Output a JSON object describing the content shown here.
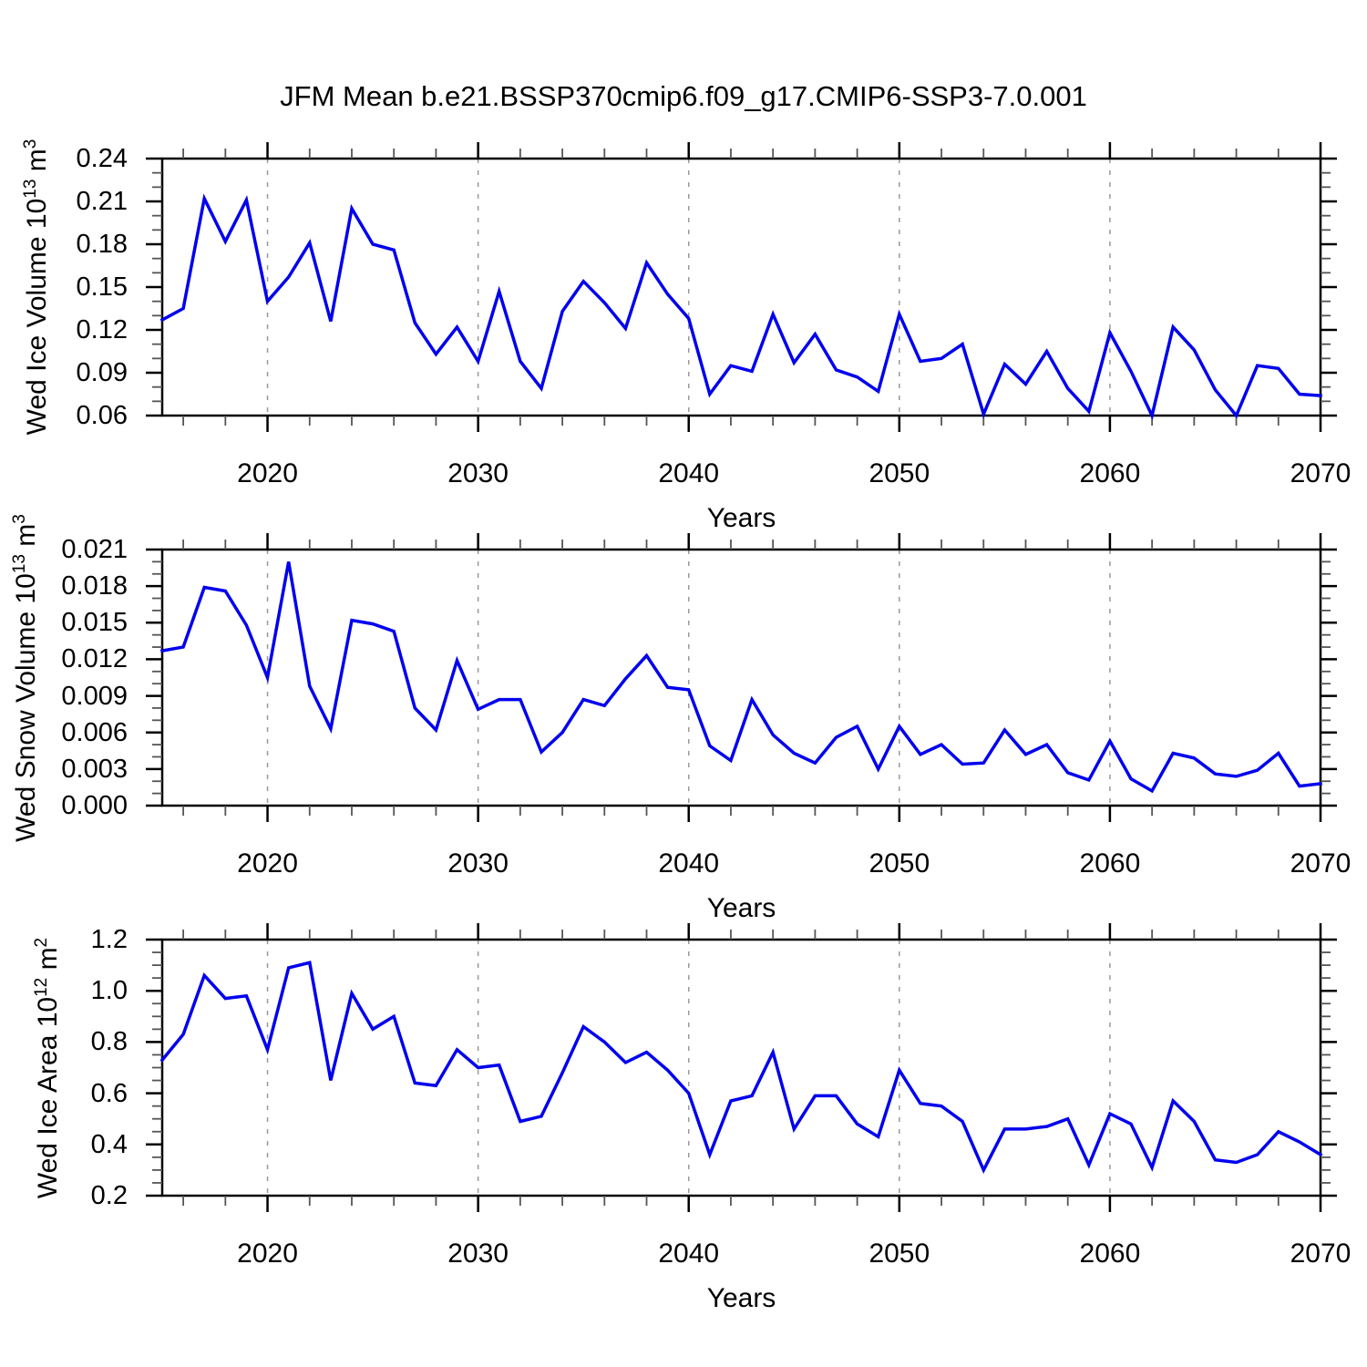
{
  "title": "JFM Mean b.e21.BSSP370cmip6.f09_g17.CMIP6-SSP3-7.0.001",
  "colors": {
    "line": "#0000EE",
    "axis": "#000000",
    "grid": "#999999",
    "minor_tick": "#555555",
    "background": "#FFFFFF"
  },
  "x_axis": {
    "label": "Years",
    "range": [
      2015,
      2070
    ],
    "tick_years": [
      2020,
      2030,
      2040,
      2050,
      2060,
      2070
    ],
    "tick_labels": [
      "2020",
      "2030",
      "2040",
      "2050",
      "2060",
      "2070"
    ],
    "minor_step_years": 2,
    "gridline_years": [
      2020,
      2030,
      2040,
      2050,
      2060
    ],
    "grid_style": "dashed"
  },
  "chart_data": [
    {
      "type": "line",
      "name": "wed-ice-volume",
      "ylabel_segments": [
        {
          "t": "Wed Ice Volume 10",
          "sup": false
        },
        {
          "t": "13",
          "sup": true
        },
        {
          "t": " m",
          "sup": false
        },
        {
          "t": "3",
          "sup": true
        }
      ],
      "xlabel": "Years",
      "ylim": [
        0.06,
        0.24
      ],
      "yticks": [
        0.24,
        0.21,
        0.18,
        0.15,
        0.12,
        0.09,
        0.06
      ],
      "ytick_labels": [
        "0.24",
        "0.21",
        "0.18",
        "0.15",
        "0.12",
        "0.09",
        "0.06"
      ],
      "yminor": 0.01,
      "x": [
        2015,
        2016,
        2017,
        2018,
        2019,
        2020,
        2021,
        2022,
        2023,
        2024,
        2025,
        2026,
        2027,
        2028,
        2029,
        2030,
        2031,
        2032,
        2033,
        2034,
        2035,
        2036,
        2037,
        2038,
        2039,
        2040,
        2041,
        2042,
        2043,
        2044,
        2045,
        2046,
        2047,
        2048,
        2049,
        2050,
        2051,
        2052,
        2053,
        2054,
        2055,
        2056,
        2057,
        2058,
        2059,
        2060,
        2061,
        2062,
        2063,
        2064,
        2065,
        2066,
        2067,
        2068,
        2069,
        2070
      ],
      "values": [
        0.127,
        0.135,
        0.212,
        0.182,
        0.211,
        0.14,
        0.157,
        0.181,
        0.126,
        0.205,
        0.18,
        0.176,
        0.125,
        0.103,
        0.122,
        0.098,
        0.147,
        0.098,
        0.079,
        0.133,
        0.154,
        0.139,
        0.121,
        0.167,
        0.145,
        0.128,
        0.075,
        0.095,
        0.091,
        0.131,
        0.097,
        0.117,
        0.092,
        0.087,
        0.077,
        0.131,
        0.098,
        0.1,
        0.11,
        0.061,
        0.096,
        0.082,
        0.105,
        0.079,
        0.063,
        0.118,
        0.091,
        0.06,
        0.122,
        0.106,
        0.078,
        0.06,
        0.095,
        0.093,
        0.075,
        0.074
      ]
    },
    {
      "type": "line",
      "name": "wed-snow-volume",
      "ylabel_segments": [
        {
          "t": "Wed Snow Volume 10",
          "sup": false
        },
        {
          "t": "13",
          "sup": true
        },
        {
          "t": " m",
          "sup": false
        },
        {
          "t": "3",
          "sup": true
        }
      ],
      "xlabel": "Years",
      "ylim": [
        0.0,
        0.021
      ],
      "yticks": [
        0.021,
        0.018,
        0.015,
        0.012,
        0.009,
        0.006,
        0.003,
        0.0
      ],
      "ytick_labels": [
        "0.021",
        "0.018",
        "0.015",
        "0.012",
        "0.009",
        "0.006",
        "0.003",
        "0.000"
      ],
      "yminor": 0.001,
      "x": [
        2015,
        2016,
        2017,
        2018,
        2019,
        2020,
        2021,
        2022,
        2023,
        2024,
        2025,
        2026,
        2027,
        2028,
        2029,
        2030,
        2031,
        2032,
        2033,
        2034,
        2035,
        2036,
        2037,
        2038,
        2039,
        2040,
        2041,
        2042,
        2043,
        2044,
        2045,
        2046,
        2047,
        2048,
        2049,
        2050,
        2051,
        2052,
        2053,
        2054,
        2055,
        2056,
        2057,
        2058,
        2059,
        2060,
        2061,
        2062,
        2063,
        2064,
        2065,
        2066,
        2067,
        2068,
        2069,
        2070
      ],
      "values": [
        0.0127,
        0.013,
        0.0179,
        0.0176,
        0.0148,
        0.0105,
        0.02,
        0.0098,
        0.0063,
        0.0152,
        0.0149,
        0.0143,
        0.008,
        0.0062,
        0.0119,
        0.0079,
        0.0087,
        0.0087,
        0.0044,
        0.006,
        0.0087,
        0.0082,
        0.0104,
        0.0123,
        0.0097,
        0.0095,
        0.0049,
        0.0037,
        0.0087,
        0.0058,
        0.0043,
        0.0035,
        0.0056,
        0.0065,
        0.003,
        0.0065,
        0.0042,
        0.005,
        0.0034,
        0.0035,
        0.0062,
        0.0042,
        0.005,
        0.0027,
        0.0021,
        0.0053,
        0.0022,
        0.0012,
        0.0043,
        0.0039,
        0.0026,
        0.0024,
        0.0029,
        0.0043,
        0.0016,
        0.0018
      ]
    },
    {
      "type": "line",
      "name": "wed-ice-area",
      "ylabel_segments": [
        {
          "t": "Wed Ice Area 10",
          "sup": false
        },
        {
          "t": "12",
          "sup": true
        },
        {
          "t": " m",
          "sup": false
        },
        {
          "t": "2",
          "sup": true
        }
      ],
      "xlabel": "Years",
      "ylim": [
        0.2,
        1.2
      ],
      "yticks": [
        1.2,
        1.0,
        0.8,
        0.6,
        0.4,
        0.2
      ],
      "ytick_labels": [
        "1.2",
        "1.0",
        "0.8",
        "0.6",
        "0.4",
        "0.2"
      ],
      "yminor": 0.05,
      "x": [
        2015,
        2016,
        2017,
        2018,
        2019,
        2020,
        2021,
        2022,
        2023,
        2024,
        2025,
        2026,
        2027,
        2028,
        2029,
        2030,
        2031,
        2032,
        2033,
        2034,
        2035,
        2036,
        2037,
        2038,
        2039,
        2040,
        2041,
        2042,
        2043,
        2044,
        2045,
        2046,
        2047,
        2048,
        2049,
        2050,
        2051,
        2052,
        2053,
        2054,
        2055,
        2056,
        2057,
        2058,
        2059,
        2060,
        2061,
        2062,
        2063,
        2064,
        2065,
        2066,
        2067,
        2068,
        2069,
        2070
      ],
      "values": [
        0.73,
        0.83,
        1.06,
        0.97,
        0.98,
        0.77,
        1.09,
        1.11,
        0.65,
        0.99,
        0.85,
        0.9,
        0.64,
        0.63,
        0.77,
        0.7,
        0.71,
        0.49,
        0.51,
        0.68,
        0.86,
        0.8,
        0.72,
        0.76,
        0.69,
        0.6,
        0.36,
        0.57,
        0.59,
        0.76,
        0.46,
        0.59,
        0.59,
        0.48,
        0.43,
        0.69,
        0.56,
        0.55,
        0.49,
        0.3,
        0.46,
        0.46,
        0.47,
        0.5,
        0.32,
        0.52,
        0.48,
        0.31,
        0.57,
        0.49,
        0.34,
        0.33,
        0.36,
        0.45,
        0.41,
        0.36
      ]
    }
  ]
}
